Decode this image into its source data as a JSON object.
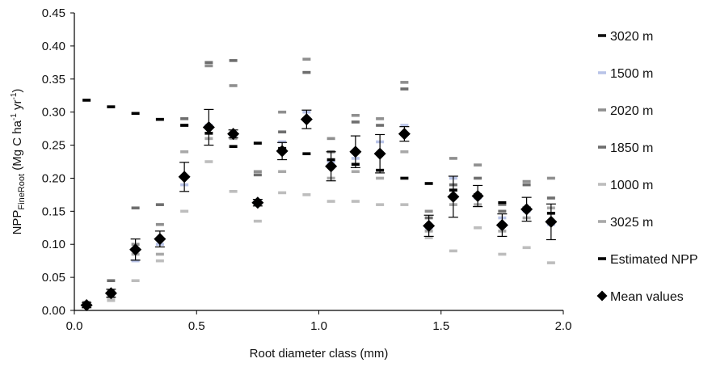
{
  "chart_data": {
    "type": "scatter",
    "title": "",
    "xlabel": "Root diameter class (mm)",
    "ylabel": {
      "prefix": "NPP",
      "subscript": "FineRoot",
      "units_open": " (Mg C ha",
      "exp1": "-1",
      "mid": " yr",
      "exp2": "-1",
      "close": ")"
    },
    "xlim": [
      0,
      2.0
    ],
    "ylim": [
      0,
      0.45
    ],
    "xticks": [
      "0.0",
      "0.5",
      "1.0",
      "1.5",
      "2.0"
    ],
    "yticks": [
      "0.00",
      "0.05",
      "0.10",
      "0.15",
      "0.20",
      "0.25",
      "0.30",
      "0.35",
      "0.40",
      "0.45"
    ],
    "grid": false,
    "legend_position": "right",
    "x": [
      0.05,
      0.15,
      0.25,
      0.35,
      0.45,
      0.55,
      0.65,
      0.75,
      0.85,
      0.95,
      1.05,
      1.15,
      1.25,
      1.35,
      1.45,
      1.55,
      1.65,
      1.75,
      1.85,
      1.95
    ],
    "series": [
      {
        "name": "3020 m",
        "marker": "dash",
        "color": "#111111",
        "values": [
          null,
          null,
          null,
          null,
          null,
          null,
          null,
          null,
          null,
          null,
          null,
          null,
          null,
          null,
          null,
          null,
          null,
          null,
          null,
          null
        ]
      },
      {
        "name": "1500 m",
        "marker": "dash",
        "color": "#b9c4e8",
        "values": [
          0.008,
          0.025,
          0.075,
          0.1,
          0.19,
          0.28,
          0.265,
          0.165,
          0.255,
          0.3,
          0.225,
          0.23,
          0.255,
          0.28,
          0.125,
          0.2,
          0.17,
          0.14,
          0.15,
          0.13
        ]
      },
      {
        "name": "2020 m",
        "marker": "dash",
        "color": "#8f8f8f",
        "values": [
          0.01,
          0.03,
          0.1,
          0.13,
          0.28,
          0.37,
          0.34,
          0.21,
          0.3,
          0.38,
          0.26,
          0.295,
          0.29,
          0.345,
          0.15,
          0.23,
          0.22,
          0.16,
          0.195,
          0.2
        ]
      },
      {
        "name": "1850 m",
        "marker": "dash",
        "color": "#6e6e6e",
        "values": [
          0.012,
          0.045,
          0.155,
          0.16,
          0.29,
          0.375,
          0.378,
          0.205,
          0.27,
          0.36,
          0.24,
          0.285,
          0.28,
          0.335,
          0.14,
          0.19,
          0.2,
          0.15,
          0.19,
          0.17
        ]
      },
      {
        "name": "1000 m",
        "marker": "dash",
        "color": "#bdbdbd",
        "values": [
          0.006,
          0.015,
          0.045,
          0.075,
          0.15,
          0.225,
          0.18,
          0.135,
          0.178,
          0.175,
          0.165,
          0.165,
          0.16,
          0.16,
          0.11,
          0.09,
          0.125,
          0.085,
          0.095,
          0.072
        ]
      },
      {
        "name": "3025 m",
        "marker": "dash",
        "color": "#a8a8a8",
        "values": [
          0.009,
          0.02,
          0.085,
          0.085,
          0.24,
          0.26,
          0.26,
          0.16,
          0.21,
          0.29,
          0.2,
          0.21,
          0.2,
          0.24,
          0.12,
          0.16,
          0.16,
          0.12,
          0.14,
          0.155
        ]
      },
      {
        "name": "Estimated NPP",
        "marker": "dash",
        "color": "#000000",
        "values": [
          0.318,
          0.308,
          0.298,
          0.289,
          0.28,
          0.268,
          0.248,
          0.253,
          0.245,
          0.237,
          0.228,
          0.221,
          0.212,
          0.2,
          0.192,
          0.182,
          0.175,
          0.163,
          0.155,
          0.147
        ]
      },
      {
        "name": "Mean values",
        "marker": "diamond",
        "color": "#000000",
        "values": [
          0.008,
          0.026,
          0.092,
          0.108,
          0.202,
          0.277,
          0.267,
          0.163,
          0.241,
          0.289,
          0.218,
          0.24,
          0.237,
          0.267,
          0.128,
          0.172,
          0.173,
          0.129,
          0.153,
          0.134
        ],
        "error": [
          0.004,
          0.006,
          0.016,
          0.012,
          0.022,
          0.027,
          0.006,
          0.005,
          0.013,
          0.014,
          0.022,
          0.024,
          0.029,
          0.011,
          0.016,
          0.031,
          0.016,
          0.017,
          0.018,
          0.027
        ]
      }
    ]
  }
}
